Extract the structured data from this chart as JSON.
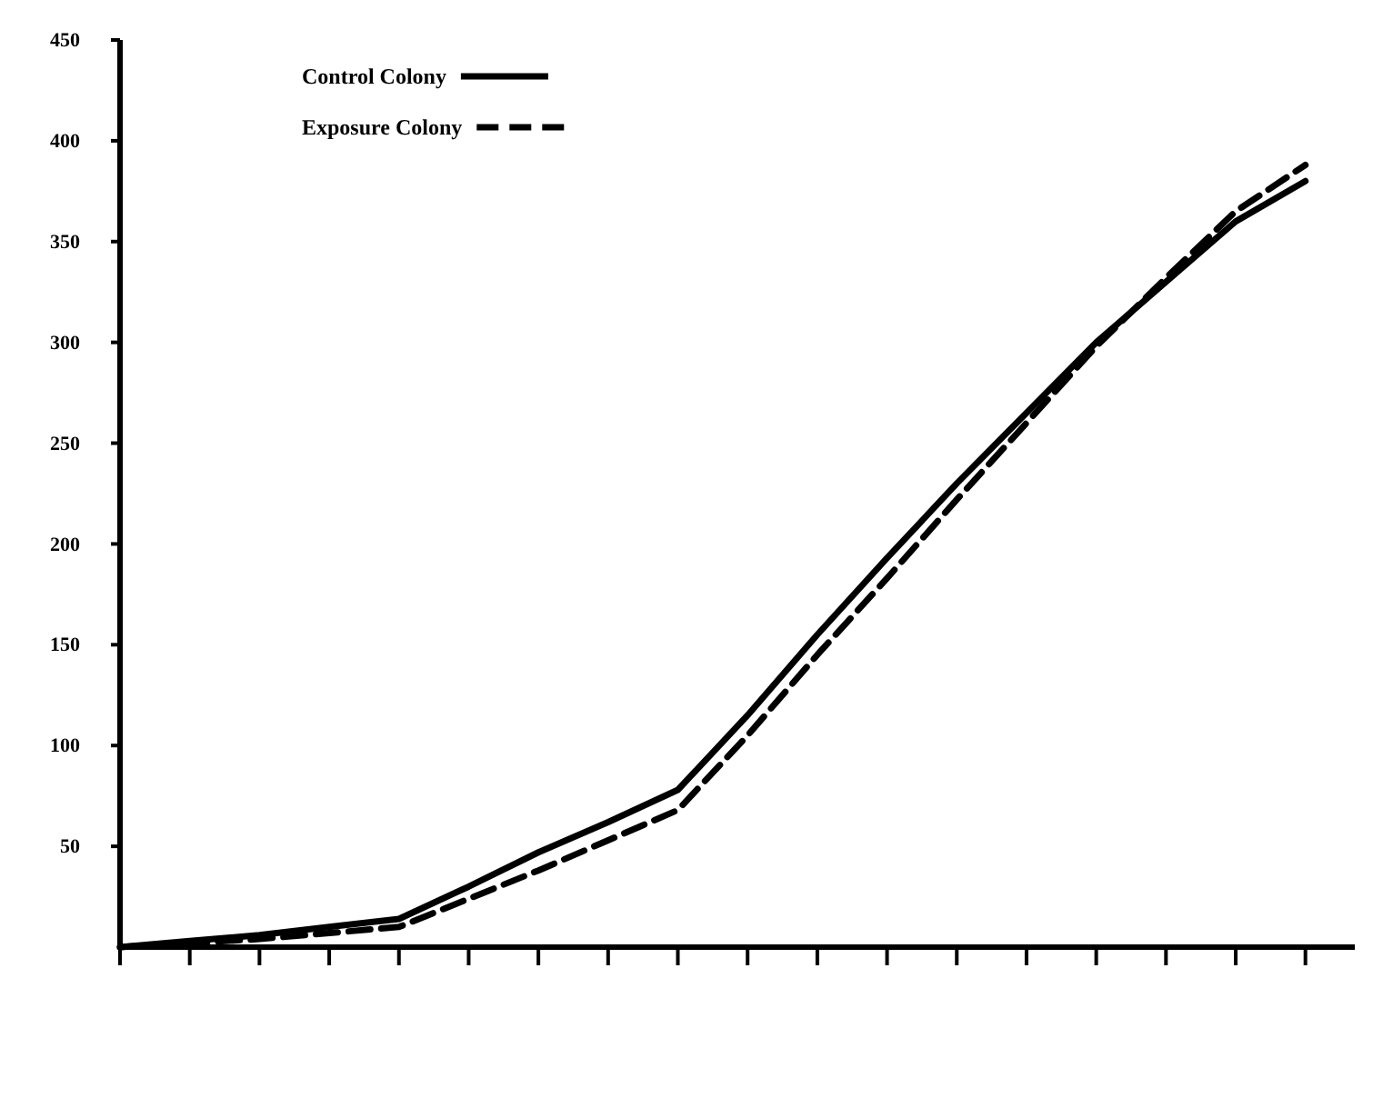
{
  "chart_data": {
    "type": "line",
    "categories": [
      null,
      null,
      null,
      null,
      null,
      null,
      null,
      null,
      null,
      null,
      null,
      null,
      null,
      null,
      null,
      null,
      null,
      null
    ],
    "ylim": [
      0,
      450
    ],
    "yticks": [
      50,
      100,
      150,
      200,
      250,
      300,
      350,
      400,
      450
    ],
    "legend": "top",
    "marker": "none",
    "series": [
      {
        "name": "Control Colony",
        "color": "#000000",
        "line_style": "solid",
        "values": [
          0,
          3,
          6,
          10,
          14,
          30,
          47,
          62,
          78,
          115,
          155,
          193,
          230,
          265,
          300,
          330,
          360,
          380
        ]
      },
      {
        "name": "Exposure Colony",
        "color": "#000000",
        "line_style": "dashed",
        "values": [
          0,
          2,
          4,
          7,
          10,
          24,
          38,
          53,
          68,
          105,
          145,
          183,
          222,
          260,
          298,
          332,
          365,
          388
        ]
      }
    ]
  }
}
